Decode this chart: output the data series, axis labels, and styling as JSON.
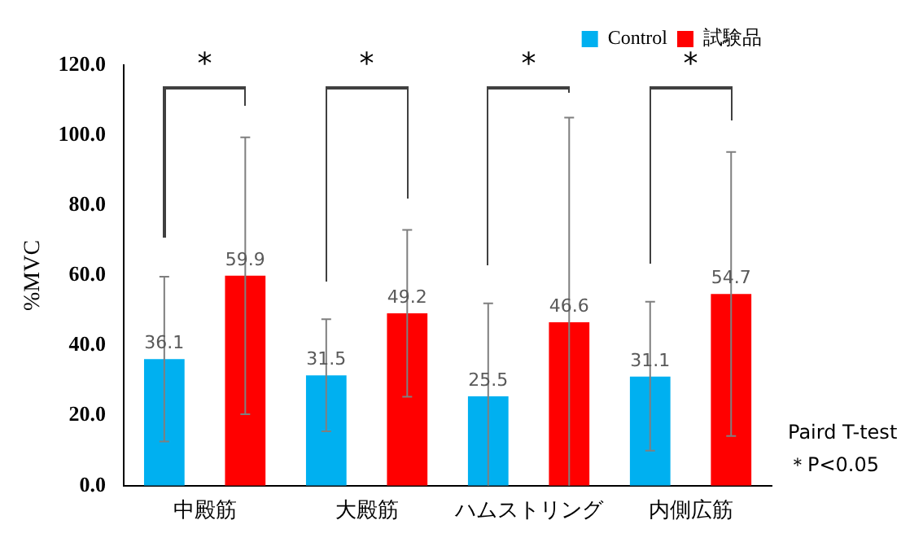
{
  "chart_data": {
    "type": "bar",
    "ylabel": "%MVC",
    "categories": [
      "中殿筋",
      "大殿筋",
      "ハムストリング",
      "内側広筋"
    ],
    "series": [
      {
        "name": "Control",
        "color": "#00b0f0",
        "values": [
          36.1,
          31.5,
          25.5,
          31.1
        ],
        "errors": [
          [
            12.6,
            59.6
          ],
          [
            15.5,
            47.5
          ],
          [
            0,
            52
          ],
          [
            10,
            52.5
          ]
        ]
      },
      {
        "name": "試験品",
        "color": "#ff0000",
        "values": [
          59.9,
          49.2,
          46.6,
          54.7
        ],
        "errors": [
          [
            20.4,
            99.4
          ],
          [
            25.4,
            73
          ],
          [
            0,
            105
          ],
          [
            14.2,
            95.2
          ]
        ]
      }
    ],
    "ylim": [
      0,
      120
    ],
    "yticks": [
      {
        "value": 0,
        "label": "0.0"
      },
      {
        "value": 20,
        "label": "20.0"
      },
      {
        "value": 40,
        "label": "40.0"
      },
      {
        "value": 60,
        "label": "60.0"
      },
      {
        "value": 80,
        "label": "80.0"
      },
      {
        "value": 100,
        "label": "100.0"
      },
      {
        "value": 120,
        "label": "120.0"
      }
    ],
    "grid": false,
    "legend": "top right",
    "data_labels": true,
    "annotations": [
      "*",
      "*",
      "*",
      "*",
      "Paird T-test",
      "＊P<0.05"
    ]
  }
}
